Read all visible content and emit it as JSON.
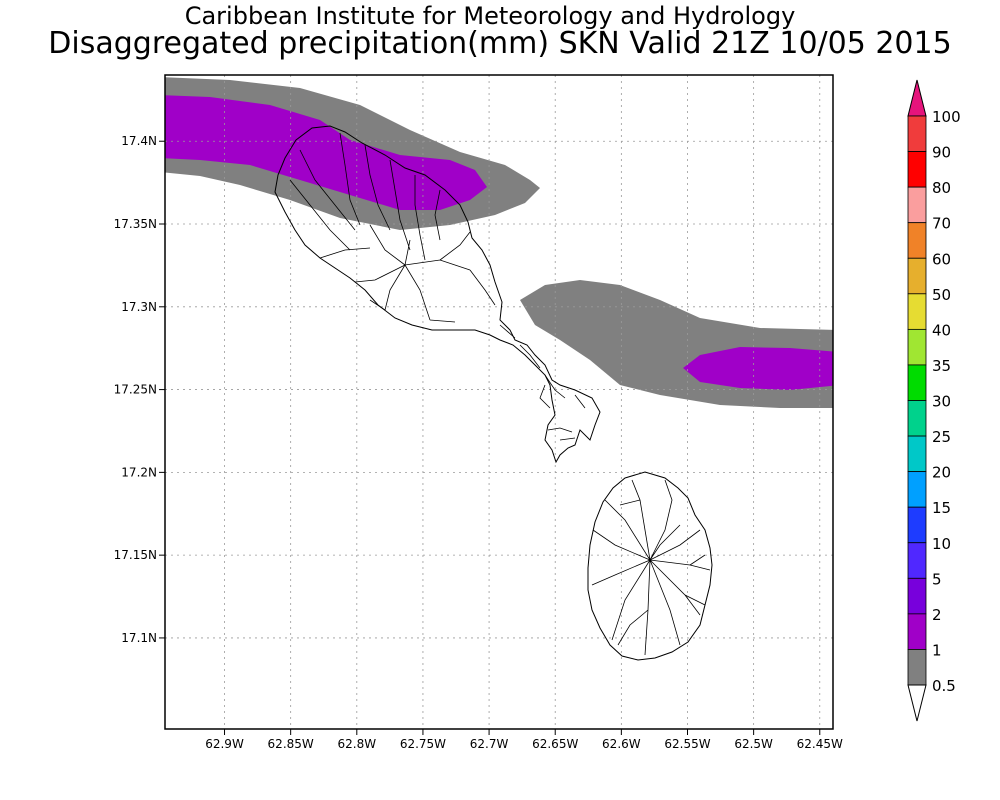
{
  "header": {
    "title": "Caribbean Institute for Meteorology and Hydrology",
    "subtitle": "Disaggregated precipitation(mm) SKN Valid 21Z 10/05 2015"
  },
  "map": {
    "region": "St. Kitts and Nevis",
    "grid": true,
    "lon_range": [
      -62.945,
      -62.44
    ],
    "lat_range": [
      17.045,
      17.44
    ],
    "x_ticks": [
      "62.9W",
      "62.85W",
      "62.8W",
      "62.75W",
      "62.7W",
      "62.65W",
      "62.6W",
      "62.55W",
      "62.5W",
      "62.45W"
    ],
    "x_tick_values": [
      -62.9,
      -62.85,
      -62.8,
      -62.75,
      -62.7,
      -62.65,
      -62.6,
      -62.55,
      -62.5,
      -62.45
    ],
    "y_ticks": [
      "17.4N",
      "17.35N",
      "17.3N",
      "17.25N",
      "17.2N",
      "17.15N",
      "17.1N"
    ],
    "y_tick_values": [
      17.4,
      17.35,
      17.3,
      17.25,
      17.2,
      17.15,
      17.1
    ]
  },
  "legend": {
    "levels": [
      "0.5",
      "1",
      "2",
      "5",
      "10",
      "15",
      "20",
      "25",
      "30",
      "35",
      "40",
      "50",
      "60",
      "70",
      "80",
      "90",
      "100"
    ],
    "colors": [
      "#808080",
      "#a000c8",
      "#7800dc",
      "#5028ff",
      "#1e3cff",
      "#00a0ff",
      "#00c8c8",
      "#00d28c",
      "#00dc00",
      "#a0e632",
      "#e6dc32",
      "#e6af2d",
      "#f08228",
      "#fa9e9e",
      "#ff0000",
      "#f03c3c",
      "#e6147c"
    ]
  }
}
